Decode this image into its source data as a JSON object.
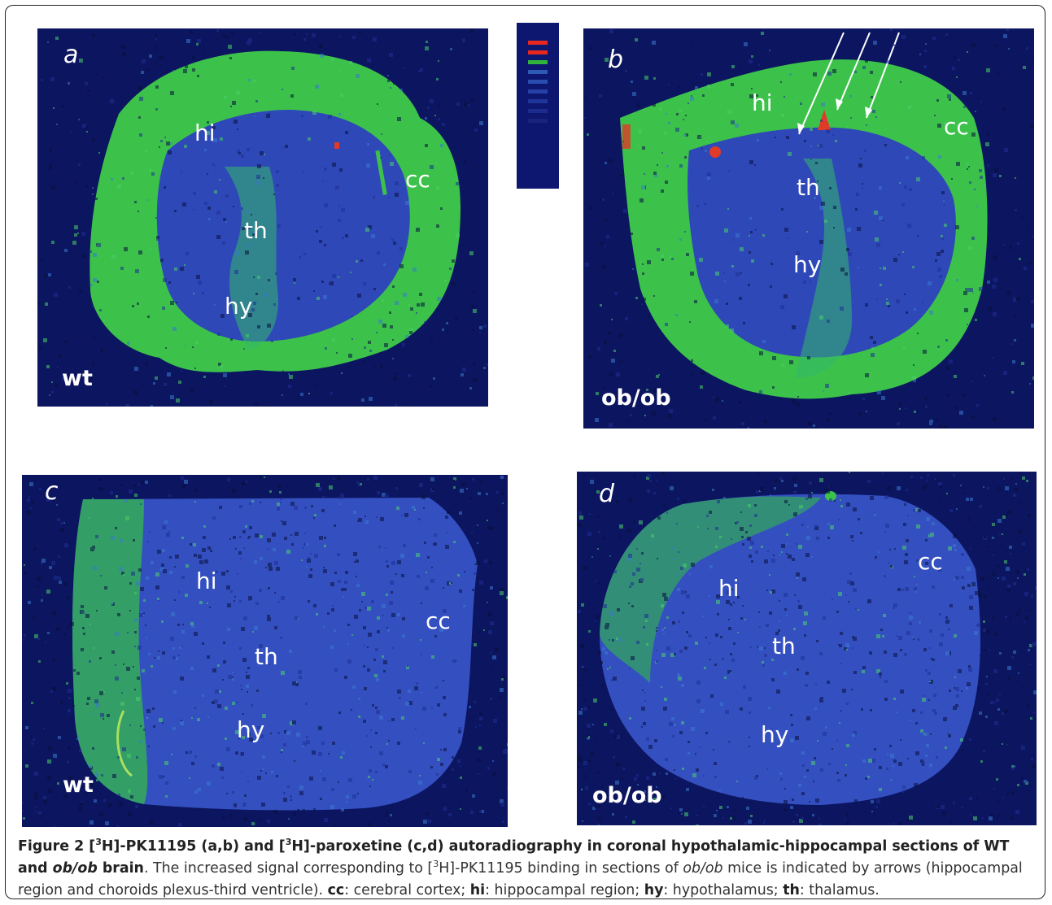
{
  "figure": {
    "panels": [
      {
        "letter": "a",
        "genotype": "wt",
        "regions": {
          "hi": "hi",
          "th": "th",
          "hy": "hy",
          "cc": "cc"
        }
      },
      {
        "letter": "b",
        "genotype": "ob/ob",
        "regions": {
          "hi": "hi",
          "th": "th",
          "hy": "hy",
          "cc": "cc"
        }
      },
      {
        "letter": "c",
        "genotype": "wt",
        "regions": {
          "hi": "hi",
          "th": "th",
          "hy": "hy",
          "cc": "cc"
        }
      },
      {
        "letter": "d",
        "genotype": "ob/ob",
        "regions": {
          "hi": "hi",
          "th": "th",
          "hy": "hy",
          "cc": "cc"
        }
      }
    ],
    "colors": {
      "background": "#0c1560",
      "tissue": "#2f48b8",
      "signal_green": "#33c040",
      "signal_red": "#e03a28"
    },
    "scale_bar_colors": [
      "#e8281e",
      "#e8281e",
      "#32b43c",
      "#2d5ab4",
      "#2a4db0",
      "#2540a6",
      "#203599",
      "#1c2c8c",
      "#18247e"
    ]
  },
  "caption": {
    "label": "Figure 2",
    "title_p1": " [",
    "sup1": "3",
    "title_p2": "H]-PK11195 (a,b) and [",
    "sup2": "3",
    "title_p3": "H]-paroxetine (c,d) autoradiography in coronal hypothalamic-hippocampal sections of WT and ",
    "title_ital": "ob/ob",
    "title_p4": " brain",
    "body_p1": ". The increased signal corresponding to [",
    "sup3": "3",
    "body_p2": "H]-PK11195 binding in sections of ",
    "body_ital": "ob/ob",
    "body_p3": " mice is indicated by arrows (hippocampal region and choroids plexus-third ventricle). ",
    "abbr": [
      {
        "term": "cc",
        "def": ": cerebral cortex; "
      },
      {
        "term": "hi",
        "def": ": hippocampal region; "
      },
      {
        "term": "hy",
        "def": ": hypothalamus; "
      },
      {
        "term": "th",
        "def": ": thalamus."
      }
    ]
  }
}
